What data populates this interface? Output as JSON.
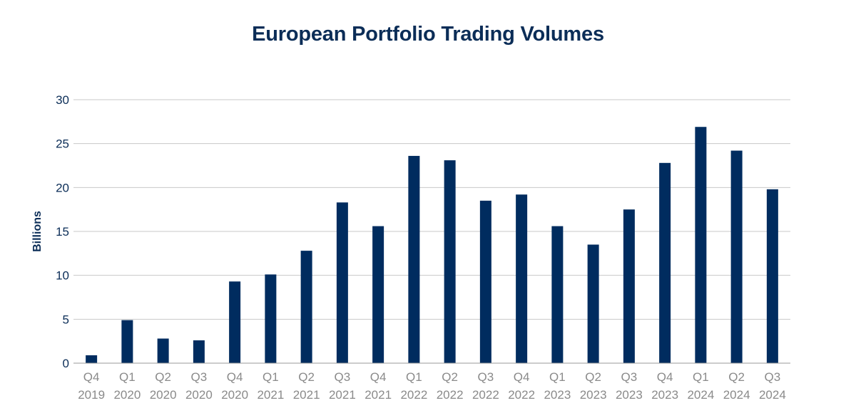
{
  "chart_data": {
    "type": "bar",
    "title": "European Portfolio Trading Volumes",
    "xlabel": "",
    "ylabel": "Billions",
    "ylim": [
      0,
      30
    ],
    "yticks": [
      0,
      5,
      10,
      15,
      20,
      25,
      30
    ],
    "grid": true,
    "categories": [
      [
        "Q4",
        "2019"
      ],
      [
        "Q1",
        "2020"
      ],
      [
        "Q2",
        "2020"
      ],
      [
        "Q3",
        "2020"
      ],
      [
        "Q4",
        "2020"
      ],
      [
        "Q1",
        "2021"
      ],
      [
        "Q2",
        "2021"
      ],
      [
        "Q3",
        "2021"
      ],
      [
        "Q4",
        "2021"
      ],
      [
        "Q1",
        "2022"
      ],
      [
        "Q2",
        "2022"
      ],
      [
        "Q3",
        "2022"
      ],
      [
        "Q4",
        "2022"
      ],
      [
        "Q1",
        "2023"
      ],
      [
        "Q2",
        "2023"
      ],
      [
        "Q3",
        "2023"
      ],
      [
        "Q4",
        "2023"
      ],
      [
        "Q1",
        "2024"
      ],
      [
        "Q2",
        "2024"
      ],
      [
        "Q3",
        "2024"
      ]
    ],
    "values": [
      0.9,
      4.9,
      2.8,
      2.6,
      9.3,
      10.1,
      12.8,
      18.3,
      15.6,
      23.6,
      23.1,
      18.5,
      19.2,
      15.6,
      13.5,
      17.5,
      22.8,
      26.9,
      24.2,
      19.8
    ],
    "colors": {
      "bar": "#002c5f",
      "grid": "#c8c8c8",
      "title": "#0b2d57",
      "xtick": "#8a8a8a"
    }
  }
}
